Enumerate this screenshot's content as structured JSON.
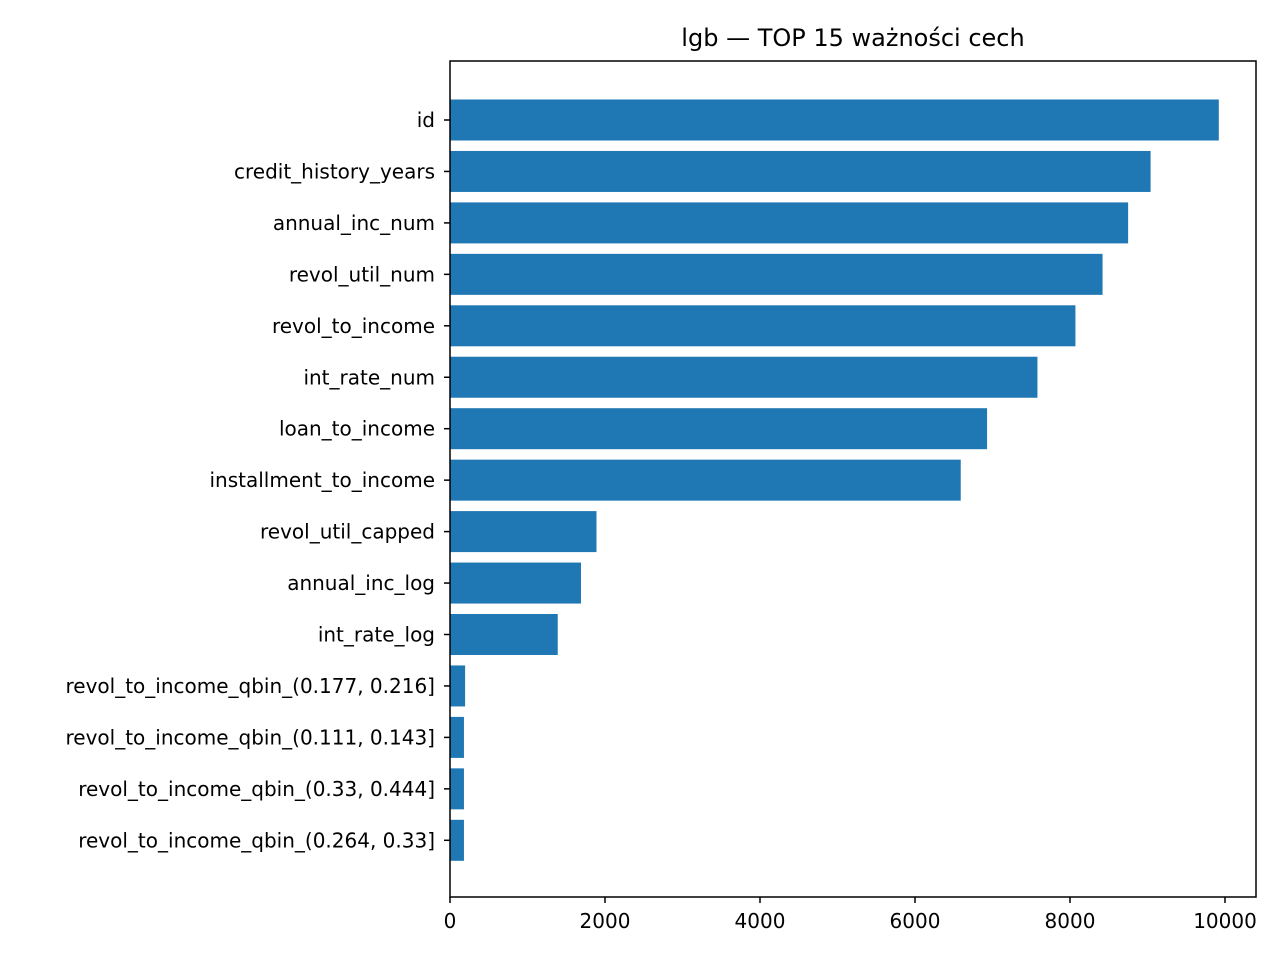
{
  "chart_data": {
    "type": "bar",
    "orientation": "horizontal",
    "title": "lgb — TOP 15 ważności cech",
    "xlabel": "",
    "ylabel": "",
    "xlim": [
      0,
      10400
    ],
    "xticks": [
      0,
      2000,
      4000,
      6000,
      8000,
      10000
    ],
    "grid": false,
    "bar_color": "#1f77b4",
    "categories": [
      "id",
      "credit_history_years",
      "annual_inc_num",
      "revol_util_num",
      "revol_to_income",
      "int_rate_num",
      "loan_to_income",
      "installment_to_income",
      "revol_util_capped",
      "annual_inc_log",
      "int_rate_log",
      "revol_to_income_qbin_(0.177, 0.216]",
      "revol_to_income_qbin_(0.111, 0.143]",
      "revol_to_income_qbin_(0.33, 0.444]",
      "revol_to_income_qbin_(0.264, 0.33]"
    ],
    "values": [
      9920,
      9040,
      8750,
      8420,
      8070,
      7580,
      6930,
      6590,
      1890,
      1690,
      1390,
      195,
      180,
      180,
      180
    ]
  }
}
